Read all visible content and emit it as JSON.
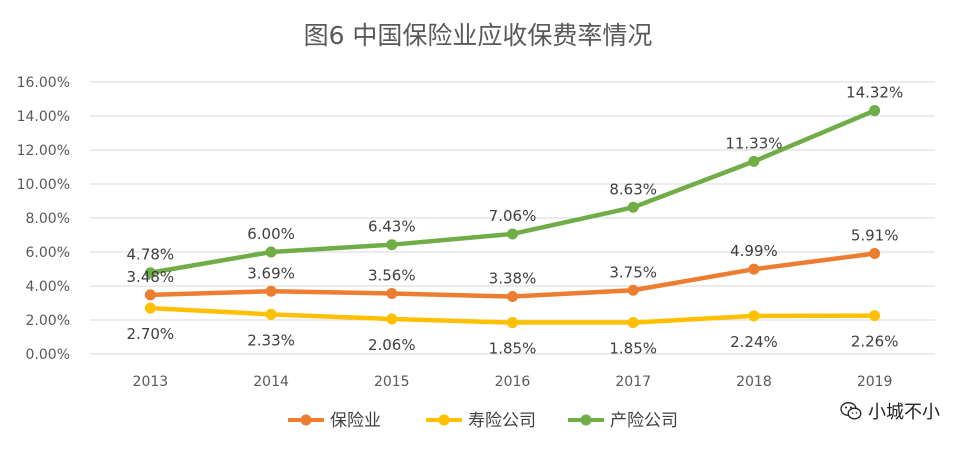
{
  "chart_data": {
    "type": "line",
    "title": "图6  中国保险业应收保费率情况",
    "xlabel": "",
    "ylabel": "",
    "categories": [
      "2013",
      "2014",
      "2015",
      "2016",
      "2017",
      "2018",
      "2019"
    ],
    "ylim": [
      0,
      16
    ],
    "yticks": [
      "0.00%",
      "2.00%",
      "4.00%",
      "6.00%",
      "8.00%",
      "10.00%",
      "12.00%",
      "14.00%",
      "16.00%"
    ],
    "grid": true,
    "legend_position": "bottom",
    "series": [
      {
        "name": "保险业",
        "color": "#ED7D31",
        "values": [
          3.48,
          3.69,
          3.56,
          3.38,
          3.75,
          4.99,
          5.91
        ],
        "labels": [
          "3.48%",
          "3.69%",
          "3.56%",
          "3.38%",
          "3.75%",
          "4.99%",
          "5.91%"
        ],
        "label_position": "above"
      },
      {
        "name": "寿险公司",
        "color": "#FFC000",
        "values": [
          2.7,
          2.33,
          2.06,
          1.85,
          1.85,
          2.24,
          2.26
        ],
        "labels": [
          "2.70%",
          "2.33%",
          "2.06%",
          "1.85%",
          "1.85%",
          "2.24%",
          "2.26%"
        ],
        "label_position": "below"
      },
      {
        "name": "产险公司",
        "color": "#70AD47",
        "values": [
          4.78,
          6.0,
          6.43,
          7.06,
          8.63,
          11.33,
          14.32
        ],
        "labels": [
          "4.78%",
          "6.00%",
          "6.43%",
          "7.06%",
          "8.63%",
          "11.33%",
          "14.32%"
        ],
        "label_position": "above"
      }
    ]
  },
  "watermark": {
    "text": "小城不小",
    "icon": "wechat-icon"
  }
}
